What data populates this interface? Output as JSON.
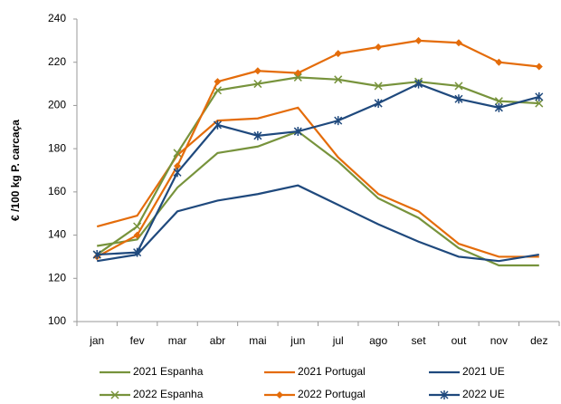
{
  "chart_data": {
    "type": "line",
    "y_label": "€ /100 kg P. carcaça",
    "categories": [
      "jan",
      "fev",
      "mar",
      "abr",
      "mai",
      "jun",
      "jul",
      "ago",
      "set",
      "out",
      "nov",
      "dez"
    ],
    "series": [
      {
        "name": "2021 Espanha",
        "color": "#77933c",
        "values": [
          135,
          138,
          162,
          178,
          181,
          188,
          174,
          157,
          148,
          134,
          126,
          126
        ]
      },
      {
        "name": "2021 Portugal",
        "color": "#e46c0a",
        "values": [
          144,
          149,
          177,
          193,
          194,
          199,
          176,
          159,
          151,
          136,
          130,
          130
        ]
      },
      {
        "name": "2021 UE",
        "color": "#1f497d",
        "values": [
          128,
          131,
          151,
          156,
          159,
          163,
          154,
          145,
          137,
          130,
          128,
          131
        ]
      },
      {
        "name": "2022 Espanha",
        "color": "#77933c",
        "marker": "x",
        "values": [
          131,
          144,
          178,
          207,
          210,
          213,
          212,
          209,
          211,
          209,
          202,
          201
        ]
      },
      {
        "name": "2022 Portugal",
        "color": "#e46c0a",
        "marker": "diamond",
        "values": [
          130,
          140,
          172,
          211,
          216,
          215,
          224,
          227,
          230,
          229,
          220,
          218
        ]
      },
      {
        "name": "2022 UE",
        "color": "#1f497d",
        "marker": "star",
        "values": [
          131,
          132,
          169,
          191,
          186,
          188,
          193,
          201,
          210,
          203,
          199,
          204
        ]
      }
    ],
    "ylim": [
      100,
      240
    ],
    "yticks": [
      100,
      120,
      140,
      160,
      180,
      200,
      220,
      240
    ],
    "grid": false
  }
}
